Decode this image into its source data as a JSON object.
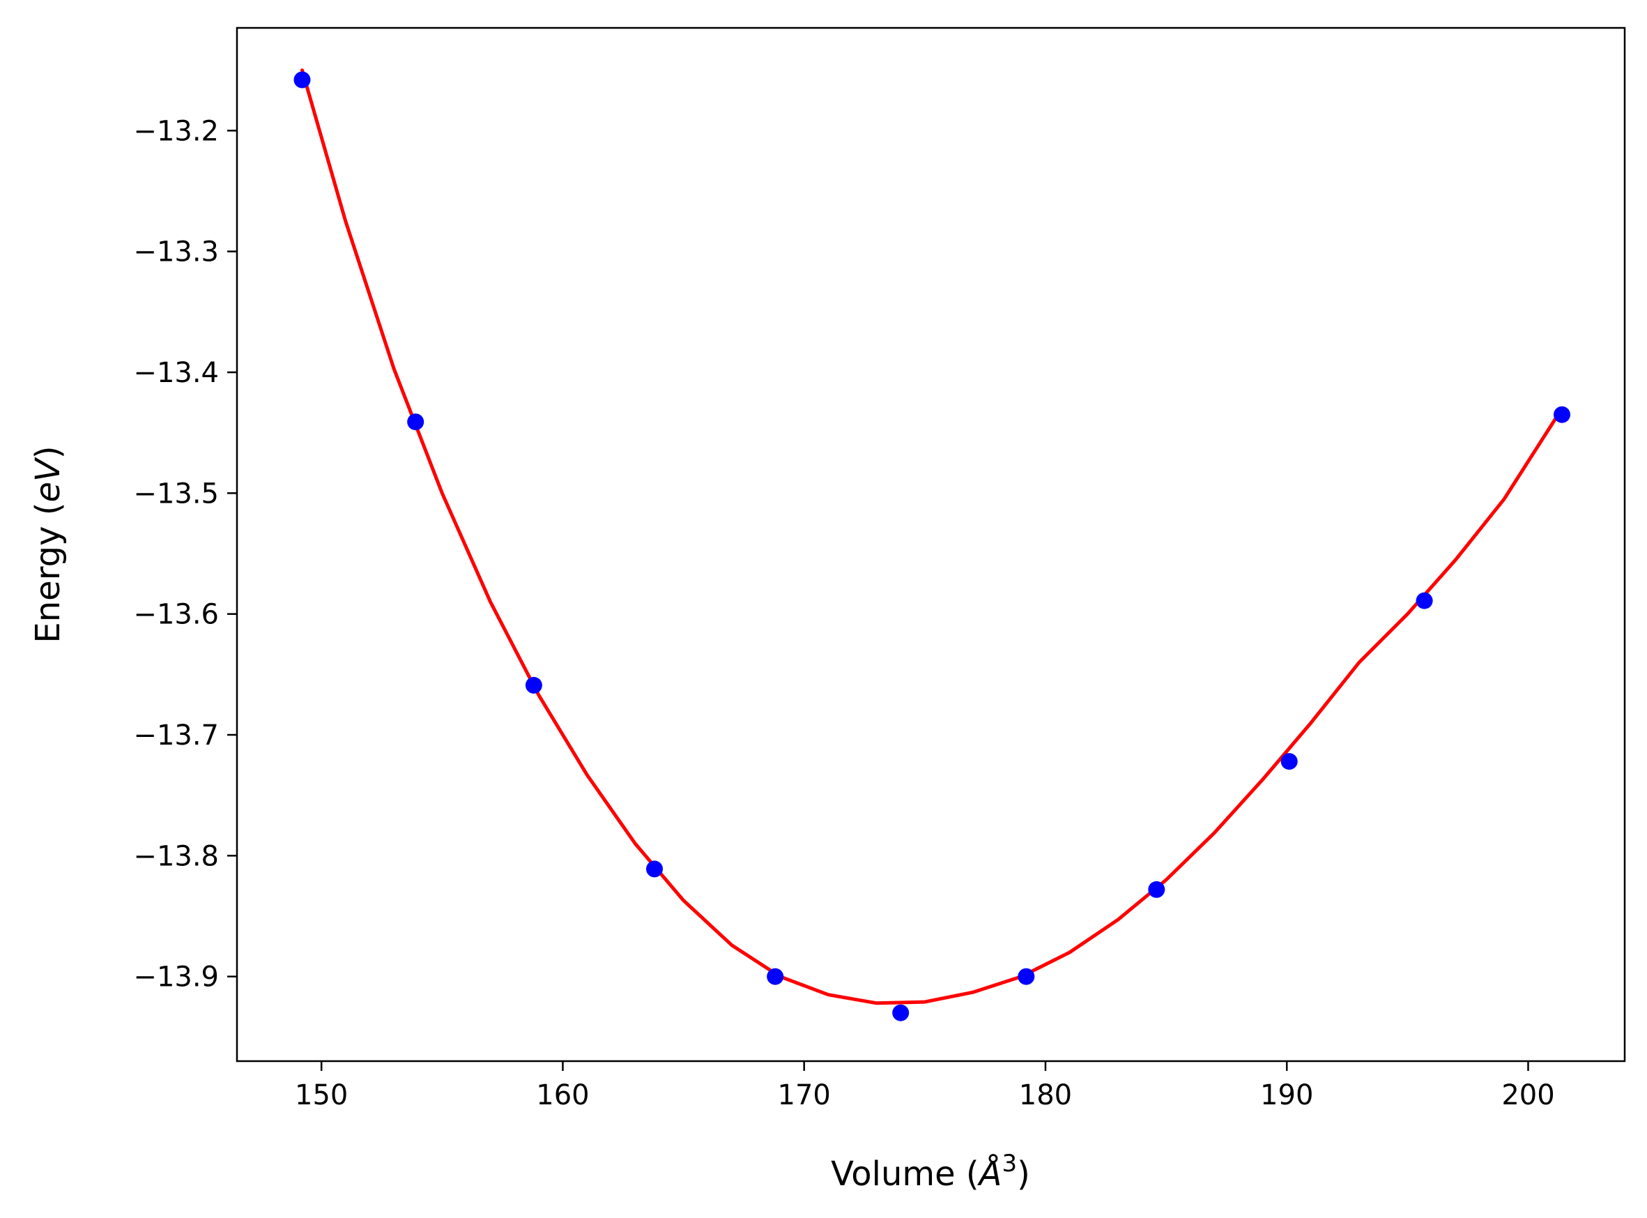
{
  "chart_data": {
    "type": "scatter",
    "xlabel_parts": {
      "prefix": "Volume (",
      "var": "Å",
      "sup": "3",
      "suffix": ")"
    },
    "ylabel_parts": {
      "prefix": "Energy (",
      "var": "eV",
      "suffix": ")"
    },
    "xlim": [
      146.5,
      204.0
    ],
    "ylim": [
      -13.97,
      -13.115
    ],
    "xticks": [
      150,
      160,
      170,
      180,
      190,
      200
    ],
    "xtick_labels": [
      "150",
      "160",
      "170",
      "180",
      "190",
      "200"
    ],
    "yticks": [
      -13.2,
      -13.3,
      -13.4,
      -13.5,
      -13.6,
      -13.7,
      -13.8,
      -13.9
    ],
    "ytick_labels": [
      "−13.2",
      "−13.3",
      "−13.4",
      "−13.5",
      "−13.6",
      "−13.7",
      "−13.8",
      "−13.9"
    ],
    "grid": false,
    "series": [
      {
        "kind": "points",
        "color": "#0000ff",
        "x": [
          149.2,
          153.9,
          158.8,
          163.8,
          168.8,
          174.0,
          179.2,
          184.6,
          190.1,
          195.7,
          201.4
        ],
        "y": [
          -13.158,
          -13.441,
          -13.659,
          -13.811,
          -13.9,
          -13.93,
          -13.9,
          -13.828,
          -13.722,
          -13.589,
          -13.435
        ]
      },
      {
        "kind": "fit-line",
        "color": "#ff0000",
        "x": [
          149.2,
          151.0,
          153.0,
          155.0,
          157.0,
          159.0,
          161.0,
          163.0,
          165.0,
          167.0,
          169.0,
          171.0,
          173.0,
          175.0,
          177.0,
          179.0,
          181.0,
          183.0,
          185.0,
          187.0,
          189.0,
          191.0,
          193.0,
          195.0,
          197.0,
          199.0,
          201.4
        ],
        "y": [
          -13.15,
          -13.275,
          -13.397,
          -13.5,
          -13.59,
          -13.667,
          -13.733,
          -13.79,
          -13.837,
          -13.874,
          -13.9,
          -13.915,
          -13.922,
          -13.921,
          -13.913,
          -13.9,
          -13.88,
          -13.853,
          -13.82,
          -13.781,
          -13.737,
          -13.69,
          -13.64,
          -13.6,
          -13.555,
          -13.505,
          -13.43
        ]
      }
    ]
  }
}
